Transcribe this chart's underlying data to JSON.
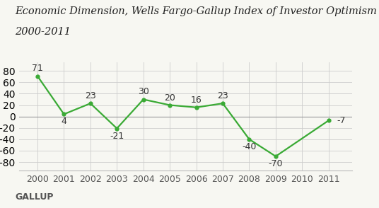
{
  "title_line1": "Economic Dimension, Wells Fargo-Gallup Index of Investor Optimism in February,",
  "title_line2": "2000-2011",
  "years": [
    2000,
    2001,
    2002,
    2003,
    2004,
    2005,
    2006,
    2007,
    2008,
    2009,
    2010,
    2011
  ],
  "values": [
    71,
    4,
    23,
    -21,
    30,
    20,
    16,
    23,
    -40,
    -70,
    null,
    -7
  ],
  "line_color": "#3aaa35",
  "marker_color": "#3aaa35",
  "background_color": "#f7f7f2",
  "zero_line_color": "#999999",
  "grid_color": "#cccccc",
  "title_fontsize": 10.5,
  "tick_fontsize": 9,
  "annotation_fontsize": 9,
  "gallup_text": "GALLUP",
  "gallup_fontsize": 9,
  "ylim": [
    -95,
    95
  ],
  "label_offsets": {
    "2000": [
      0,
      5,
      "bottom",
      "center"
    ],
    "2001": [
      0,
      -5,
      "top",
      "center"
    ],
    "2002": [
      0,
      5,
      "bottom",
      "center"
    ],
    "2003": [
      0,
      -5,
      "top",
      "center"
    ],
    "2004": [
      0,
      5,
      "bottom",
      "center"
    ],
    "2005": [
      0,
      5,
      "bottom",
      "center"
    ],
    "2006": [
      0,
      5,
      "bottom",
      "center"
    ],
    "2007": [
      0,
      5,
      "bottom",
      "center"
    ],
    "2008": [
      0,
      -5,
      "top",
      "center"
    ],
    "2009": [
      0,
      -5,
      "top",
      "center"
    ],
    "2011": [
      0.3,
      0,
      "center",
      "left"
    ]
  }
}
